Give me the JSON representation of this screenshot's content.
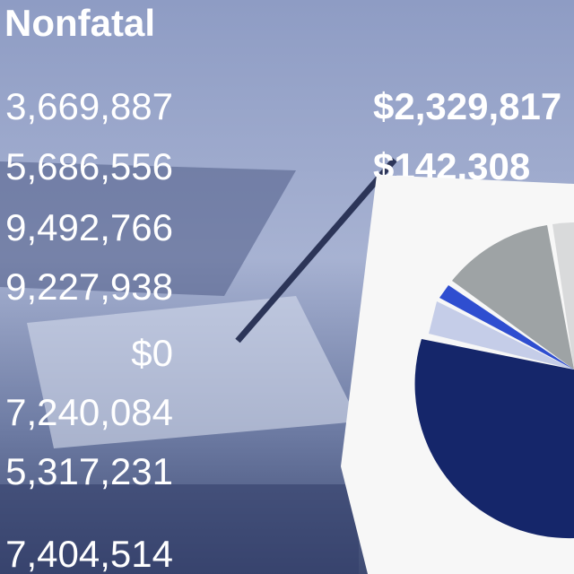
{
  "header": {
    "title": "Nonfatal"
  },
  "rows": [
    {
      "left": "3,669,887",
      "right": "$2,329,817"
    },
    {
      "left": "5,686,556",
      "right": "$142,308"
    },
    {
      "left": "9,492,766"
    },
    {
      "left": "9,227,938"
    },
    {
      "left": "$0"
    },
    {
      "left": "7,240,084"
    },
    {
      "left": "5,317,231"
    },
    {
      "left": "7,404,514",
      "right": "$"
    }
  ]
}
